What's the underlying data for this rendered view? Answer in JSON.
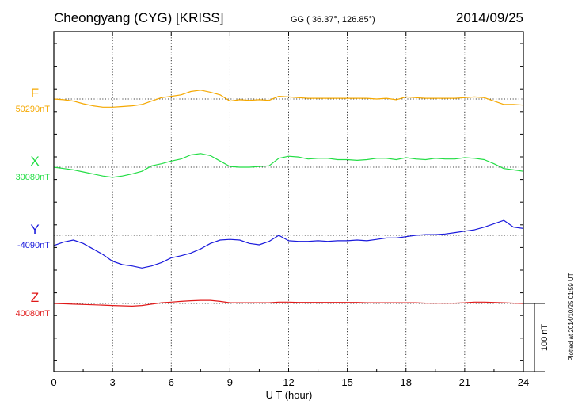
{
  "header": {
    "station": "Cheongyang (CYG)  [KRISS]",
    "coords": "GG ( 36.37°, 126.85°)",
    "date": "2014/09/25"
  },
  "footnote": "Plotted at 2014/10/25 01:59 UT",
  "scale_bar_label": "100 nT",
  "chart_data": {
    "type": "line",
    "xlabel": "U T (hour)",
    "xlim": [
      0,
      24
    ],
    "xticks": [
      0,
      3,
      6,
      9,
      12,
      15,
      18,
      21,
      24
    ],
    "xtick_labels": [
      "0",
      "3",
      "6",
      "9",
      "12",
      "15",
      "18",
      "21",
      "24"
    ],
    "grid": true,
    "y_units": "nT offset from baseline",
    "series": [
      {
        "name": "F",
        "baseline_label": "50290nT",
        "color": "#f5a800",
        "x": [
          0,
          0.5,
          1,
          1.5,
          2,
          2.5,
          3,
          3.5,
          4,
          4.5,
          5,
          5.5,
          6,
          6.5,
          7,
          7.5,
          8,
          8.5,
          9,
          9.5,
          10,
          10.5,
          11,
          11.5,
          12,
          12.5,
          13,
          13.5,
          14,
          14.5,
          15,
          15.5,
          16,
          16.5,
          17,
          17.5,
          18,
          18.5,
          19,
          19.5,
          20,
          20.5,
          21,
          21.5,
          22,
          22.5,
          23,
          23.5,
          24
        ],
        "y": [
          0,
          -1,
          -3,
          -7,
          -10,
          -12,
          -12,
          -11,
          -10,
          -8,
          -3,
          2,
          4,
          6,
          11,
          13,
          10,
          6,
          -3,
          -1,
          -2,
          -1,
          -2,
          4,
          3,
          2,
          1,
          1,
          1,
          1,
          1,
          1,
          1,
          0,
          1,
          -1,
          3,
          2,
          1,
          1,
          1,
          1,
          2,
          3,
          2,
          -3,
          -8,
          -8,
          -9
        ]
      },
      {
        "name": "X",
        "baseline_label": "30080nT",
        "color": "#22dd44",
        "x": [
          0,
          0.5,
          1,
          1.5,
          2,
          2.5,
          3,
          3.5,
          4,
          4.5,
          5,
          5.5,
          6,
          6.5,
          7,
          7.5,
          8,
          8.5,
          9,
          9.5,
          10,
          10.5,
          11,
          11.5,
          12,
          12.5,
          13,
          13.5,
          14,
          14.5,
          15,
          15.5,
          16,
          16.5,
          17,
          17.5,
          18,
          18.5,
          19,
          19.5,
          20,
          20.5,
          21,
          21.5,
          22,
          22.5,
          23,
          23.5,
          24
        ],
        "y": [
          0,
          -2,
          -4,
          -7,
          -10,
          -13,
          -15,
          -13,
          -10,
          -6,
          2,
          5,
          9,
          12,
          18,
          20,
          17,
          9,
          1,
          0,
          0,
          1,
          2,
          13,
          16,
          15,
          12,
          13,
          13,
          11,
          11,
          10,
          11,
          13,
          13,
          11,
          14,
          12,
          11,
          13,
          12,
          12,
          14,
          13,
          11,
          5,
          -2,
          -4,
          -6
        ]
      },
      {
        "name": "Y",
        "baseline_label": "-4090nT",
        "color": "#1a1adc",
        "x": [
          0,
          0.5,
          1,
          1.5,
          2,
          2.5,
          3,
          3.5,
          4,
          4.5,
          5,
          5.5,
          6,
          6.5,
          7,
          7.5,
          8,
          8.5,
          9,
          9.5,
          10,
          10.5,
          11,
          11.5,
          12,
          12.5,
          13,
          13.5,
          14,
          14.5,
          15,
          15.5,
          16,
          16.5,
          17,
          17.5,
          18,
          18.5,
          19,
          19.5,
          20,
          20.5,
          21,
          21.5,
          22,
          22.5,
          23,
          23.5,
          24
        ],
        "y": [
          -15,
          -10,
          -7,
          -12,
          -20,
          -28,
          -38,
          -43,
          -45,
          -48,
          -45,
          -40,
          -33,
          -30,
          -26,
          -20,
          -12,
          -7,
          -6,
          -7,
          -12,
          -14,
          -9,
          0,
          -8,
          -9,
          -9,
          -8,
          -9,
          -8,
          -8,
          -7,
          -8,
          -6,
          -4,
          -4,
          -2,
          0,
          1,
          1,
          2,
          4,
          6,
          8,
          12,
          17,
          22,
          12,
          10
        ]
      },
      {
        "name": "Z",
        "baseline_label": "40080nT",
        "color": "#e01818",
        "x": [
          0,
          0.5,
          1,
          1.5,
          2,
          2.5,
          3,
          3.5,
          4,
          4.5,
          5,
          5.5,
          6,
          6.5,
          7,
          7.5,
          8,
          8.5,
          9,
          9.5,
          10,
          10.5,
          11,
          11.5,
          12,
          12.5,
          13,
          13.5,
          14,
          14.5,
          15,
          15.5,
          16,
          16.5,
          17,
          17.5,
          18,
          18.5,
          19,
          19.5,
          20,
          20.5,
          21,
          21.5,
          22,
          22.5,
          23,
          23.5,
          24
        ],
        "y": [
          0,
          -0.5,
          -1,
          -1.5,
          -2,
          -2.5,
          -3,
          -3.5,
          -4,
          -3,
          -1,
          1,
          2,
          3,
          4,
          4.5,
          4.5,
          3,
          1,
          1,
          1,
          1,
          1,
          2,
          2,
          1.5,
          1.5,
          1.5,
          1.5,
          1.5,
          1.5,
          1.5,
          1,
          1,
          1,
          1,
          1,
          1,
          0.5,
          0.5,
          0.5,
          0.5,
          1,
          2,
          2,
          1.5,
          1,
          0.5,
          0
        ]
      }
    ],
    "scale_bar_nT": 100
  }
}
